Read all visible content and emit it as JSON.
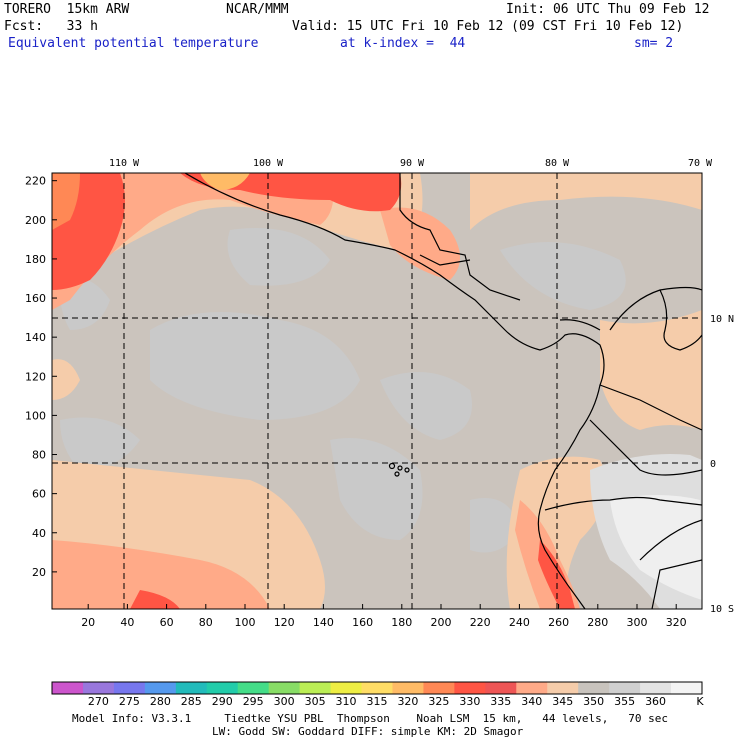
{
  "header": {
    "model": "TORERO  15km ARW",
    "center": "NCAR/MMM",
    "init": "Init: 06 UTC Thu 09 Feb 12",
    "fcst": "Fcst:   33 h",
    "valid": "Valid: 15 UTC Fri 10 Feb 12 (09 CST Fri 10 Feb 12)",
    "field": "Equivalent potential temperature",
    "level": "at k-index =  44",
    "smooth": "sm= 2"
  },
  "map": {
    "lon_labels": [
      "110 W",
      "100 W",
      "90 W",
      "80 W",
      "70 W"
    ],
    "lat_labels": [
      "10 N",
      "0",
      "10 S"
    ],
    "x_ticks": [
      20,
      40,
      60,
      80,
      100,
      120,
      140,
      160,
      180,
      200,
      220,
      240,
      260,
      280,
      300,
      320
    ],
    "y_ticks": [
      20,
      40,
      60,
      80,
      100,
      120,
      140,
      160,
      180,
      200,
      220
    ]
  },
  "colorbar": {
    "labels": [
      "270",
      "275",
      "280",
      "285",
      "290",
      "295",
      "300",
      "305",
      "310",
      "315",
      "320",
      "325",
      "330",
      "335",
      "340",
      "345",
      "350",
      "355",
      "360"
    ],
    "unit": "K",
    "colors": [
      "#cc55cc",
      "#9977dd",
      "#7777ee",
      "#5599ee",
      "#22bbbb",
      "#22ccaa",
      "#44dd88",
      "#88dd66",
      "#bbee55",
      "#eeee44",
      "#ffdd66",
      "#ffbb66",
      "#ff8855",
      "#ff5544",
      "#ee5555",
      "#ffaa88",
      "#f5ccaa",
      "#c8c3bd",
      "#cfcfcf",
      "#e4e4e4",
      "#f4f4f4"
    ]
  },
  "footer": {
    "line1": "Model Info: V3.3.1     Tiedtke YSU PBL  Thompson    Noah LSM  15 km,   44 levels,   70 sec",
    "line2": "LW: Godd SW: Goddard DIFF: simple KM: 2D Smagor"
  }
}
